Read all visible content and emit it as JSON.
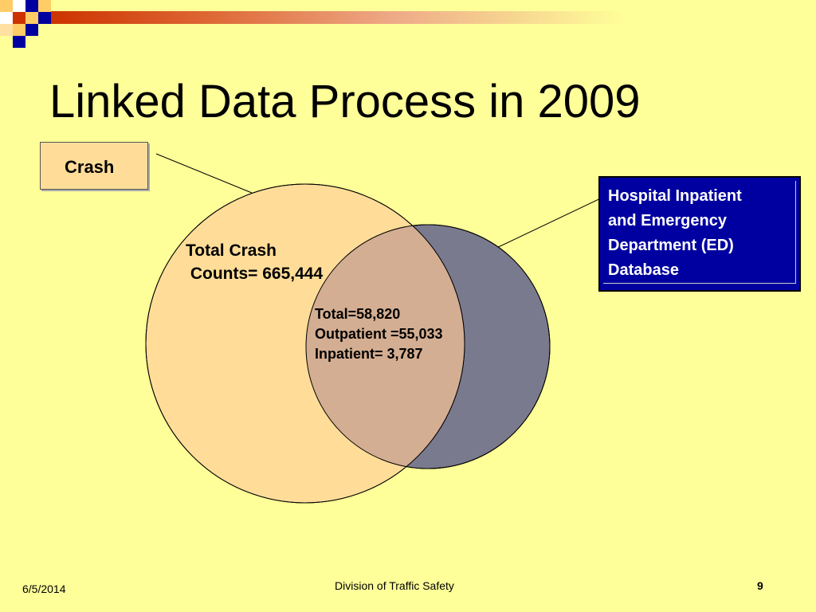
{
  "slide": {
    "title": "Linked Data Process in 2009"
  },
  "diagram": {
    "crash_box_label": "Crash",
    "database_box_lines": [
      "Hospital Inpatient",
      "and Emergency",
      "Department (ED)",
      "Database"
    ],
    "crash_circle_text": "Total Crash\n Counts= 665,444",
    "overlap_text": "Total=58,820\nOutpatient =55,033\nInpatient= 3,787",
    "colors": {
      "crash_circle": "#ffdd99",
      "database_circle": "#7a7a8f",
      "overlap": "#d4ae92",
      "database_box": "#0000a0",
      "background": "#ffff99"
    }
  },
  "footer": {
    "date": "6/5/2014",
    "organization": "Division of Traffic Safety",
    "page_number": "9"
  }
}
